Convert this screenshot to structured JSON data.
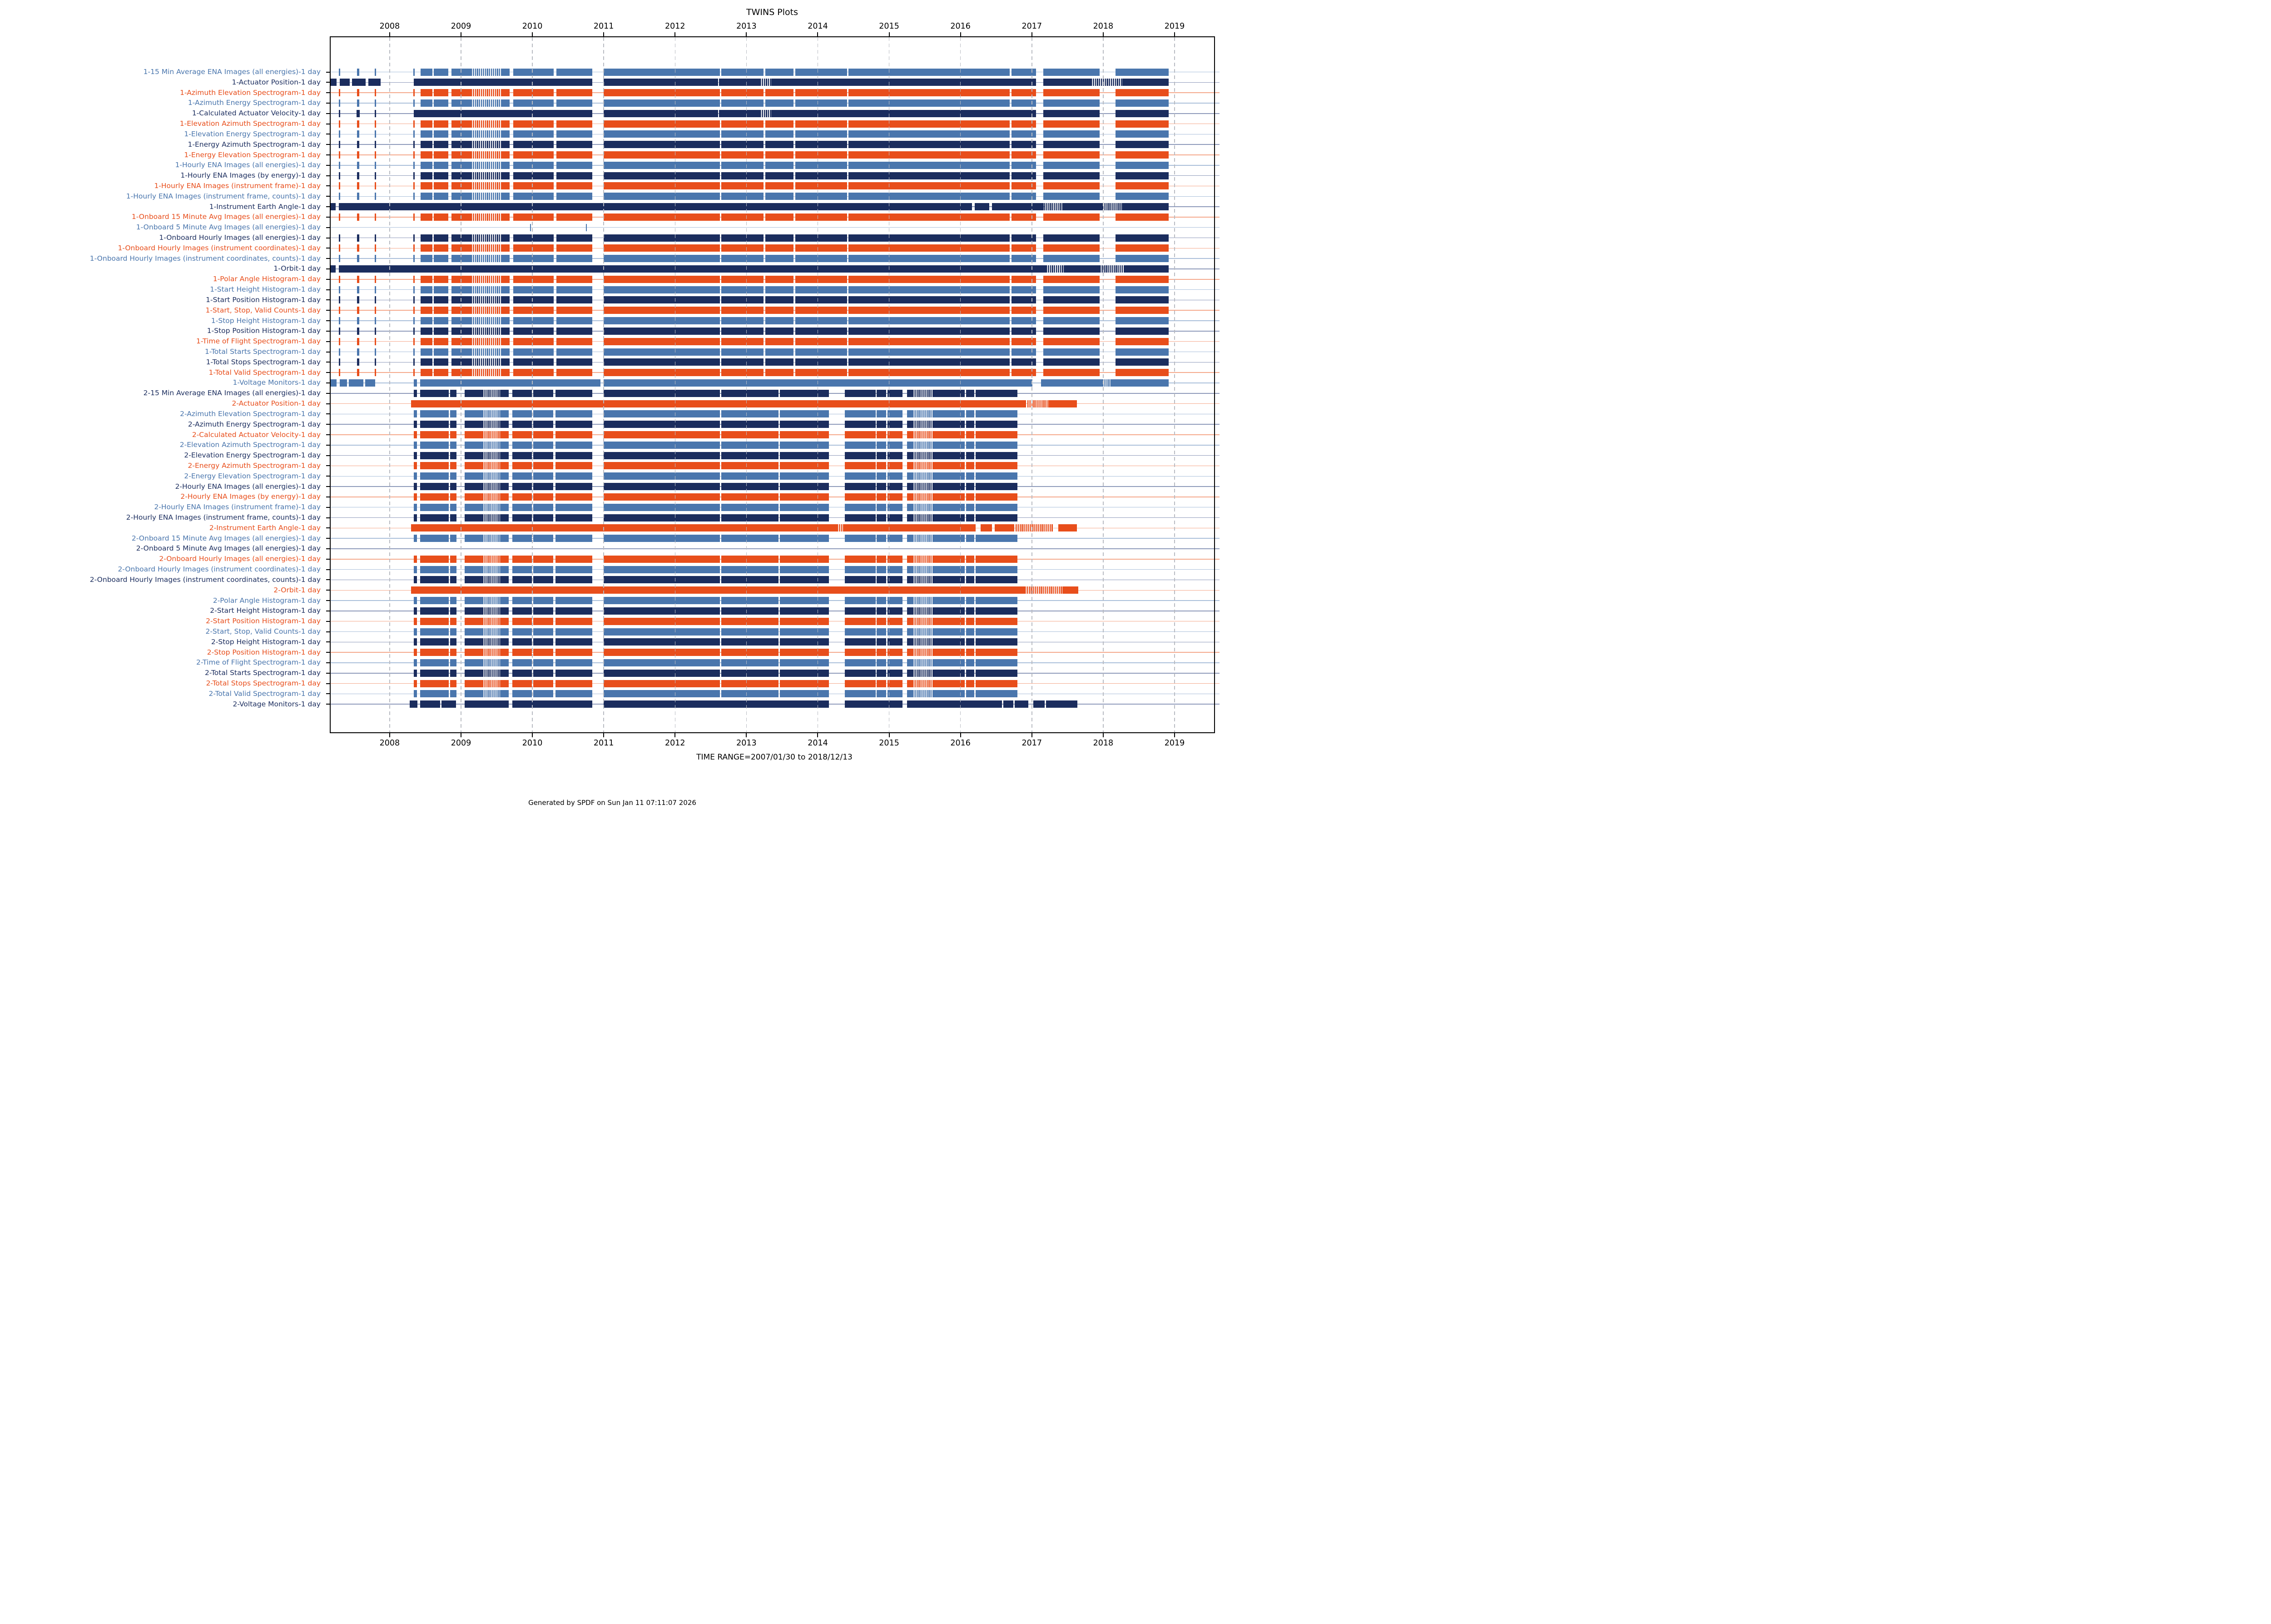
{
  "title": "TWINS Plots",
  "axis": {
    "years": [
      2008,
      2009,
      2010,
      2011,
      2012,
      2013,
      2014,
      2015,
      2016,
      2017,
      2018,
      2019
    ],
    "domain_start_year": 2007.17,
    "domain_end_year": 2019.55,
    "time_range_label": "TIME RANGE=2007/01/30 to 2018/12/13"
  },
  "footer": {
    "generated": "Generated by SPDF on Sun Jan 11 07:11:07 2026"
  },
  "colors": {
    "blue": "#4a76ad",
    "navy": "#1b2d5e",
    "orange": "#e84e1b",
    "blue_light": "#aabfda",
    "navy_light": "#8e9aba",
    "orange_light": "#f5a98c",
    "grid": "#b8bbc2",
    "frame": "#000000"
  },
  "chart_data": {
    "type": "gantt-availability",
    "x_unit": "decimal_year",
    "patterns": {
      "p1": {
        "solid": [
          [
            2007.29,
            2007.306
          ],
          [
            2007.54,
            2007.576
          ],
          [
            2007.79,
            2007.808
          ],
          [
            2008.33,
            2008.35
          ],
          [
            2008.435,
            2008.6
          ],
          [
            2008.615,
            2008.82
          ],
          [
            2008.868,
            2009.14
          ],
          [
            2009.56,
            2009.68
          ],
          [
            2009.735,
            2010.3
          ],
          [
            2010.335,
            2010.84
          ],
          [
            2011.0,
            2012.63
          ],
          [
            2012.648,
            2013.24
          ],
          [
            2013.262,
            2013.66
          ],
          [
            2013.682,
            2014.41
          ],
          [
            2014.432,
            2016.69
          ],
          [
            2016.712,
            2017.06
          ],
          [
            2017.16,
            2017.95
          ],
          [
            2018.17,
            2018.92
          ]
        ],
        "striped": [
          [
            2009.14,
            2009.56
          ]
        ]
      },
      "p1c": {
        "solid": [
          [
            2007.29,
            2007.306
          ],
          [
            2007.535,
            2007.58
          ],
          [
            2007.79,
            2007.808
          ],
          [
            2008.335,
            2010.84
          ],
          [
            2011.0,
            2012.6
          ],
          [
            2012.615,
            2013.19
          ],
          [
            2013.35,
            2017.06
          ],
          [
            2017.16,
            2017.95
          ],
          [
            2018.17,
            2018.92
          ]
        ],
        "striped": [
          [
            2013.19,
            2013.35
          ]
        ]
      },
      "act1": {
        "solid": [
          [
            2007.17,
            2007.255
          ],
          [
            2007.3,
            2007.44
          ],
          [
            2007.47,
            2007.665
          ],
          [
            2007.7,
            2007.875
          ],
          [
            2008.335,
            2010.84
          ],
          [
            2011.0,
            2012.6
          ],
          [
            2012.615,
            2013.19
          ],
          [
            2013.35,
            2017.06
          ],
          [
            2017.16,
            2017.83
          ],
          [
            2018.27,
            2018.92
          ]
        ],
        "striped": [
          [
            2013.19,
            2013.35
          ],
          [
            2017.83,
            2018.27
          ]
        ]
      },
      "ea1": {
        "solid": [
          [
            2007.17,
            2007.245
          ],
          [
            2007.285,
            2016.16
          ],
          [
            2016.2,
            2016.4
          ],
          [
            2016.44,
            2017.17
          ],
          [
            2017.44,
            2017.99
          ],
          [
            2018.26,
            2018.92
          ]
        ],
        "striped": [
          [
            2017.17,
            2017.44
          ],
          [
            2017.99,
            2018.26
          ]
        ]
      },
      "orbit1": {
        "solid": [
          [
            2007.17,
            2007.245
          ],
          [
            2007.285,
            2017.2
          ],
          [
            2017.45,
            2017.95
          ],
          [
            2018.3,
            2018.92
          ]
        ],
        "striped": [
          [
            2017.2,
            2017.45
          ],
          [
            2017.95,
            2018.3
          ]
        ]
      },
      "empty1": {
        "solid": [
          [
            2009.968,
            2009.982
          ],
          [
            2010.752,
            2010.766
          ]
        ],
        "striped": []
      },
      "volt1": {
        "solid": [
          [
            2007.17,
            2007.255
          ],
          [
            2007.3,
            2007.4
          ],
          [
            2007.43,
            2007.63
          ],
          [
            2007.66,
            2007.8
          ],
          [
            2008.335,
            2008.38
          ],
          [
            2008.43,
            2010.955
          ],
          [
            2011.0,
            2017.01
          ],
          [
            2017.13,
            2017.99
          ],
          [
            2018.11,
            2018.92
          ]
        ],
        "striped": [
          [
            2017.99,
            2018.11
          ]
        ]
      },
      "p2": {
        "solid": [
          [
            2008.335,
            2008.385
          ],
          [
            2008.43,
            2008.83
          ],
          [
            2008.845,
            2008.935
          ],
          [
            2009.05,
            2009.3
          ],
          [
            2009.55,
            2009.67
          ],
          [
            2009.72,
            2009.99
          ],
          [
            2010.01,
            2010.29
          ],
          [
            2010.325,
            2010.84
          ],
          [
            2011.0,
            2012.63
          ],
          [
            2012.648,
            2013.45
          ],
          [
            2013.47,
            2014.155
          ],
          [
            2014.38,
            2014.81
          ],
          [
            2014.825,
            2014.96
          ],
          [
            2014.975,
            2015.19
          ],
          [
            2015.25,
            2015.33
          ],
          [
            2015.62,
            2016.06
          ],
          [
            2016.08,
            2016.19
          ],
          [
            2016.21,
            2016.8
          ]
        ],
        "striped": [
          [
            2009.3,
            2009.55
          ],
          [
            2015.33,
            2015.62
          ]
        ]
      },
      "act2": {
        "solid": [
          [
            2008.3,
            2016.92
          ],
          [
            2017.24,
            2017.63
          ]
        ],
        "striped": [
          [
            2016.935,
            2017.24
          ]
        ]
      },
      "ea2": {
        "solid": [
          [
            2008.3,
            2014.27
          ],
          [
            2014.37,
            2016.21
          ],
          [
            2016.28,
            2016.44
          ],
          [
            2016.48,
            2016.75
          ],
          [
            2017.37,
            2017.63
          ]
        ],
        "striped": [
          [
            2014.27,
            2014.37
          ],
          [
            2016.77,
            2017.3
          ]
        ]
      },
      "orbit2": {
        "solid": [
          [
            2008.3,
            2016.9
          ],
          [
            2017.43,
            2017.65
          ]
        ],
        "striped": [
          [
            2016.9,
            2017.43
          ]
        ]
      },
      "empty2": {
        "solid": [],
        "striped": []
      },
      "volt2": {
        "solid": [
          [
            2008.28,
            2008.39
          ],
          [
            2008.43,
            2008.71
          ],
          [
            2008.725,
            2008.93
          ],
          [
            2009.05,
            2009.67
          ],
          [
            2009.72,
            2010.84
          ],
          [
            2011.0,
            2014.155
          ],
          [
            2014.38,
            2015.19
          ],
          [
            2015.25,
            2016.58
          ],
          [
            2016.6,
            2016.74
          ],
          [
            2016.76,
            2016.95
          ],
          [
            2017.02,
            2017.18
          ],
          [
            2017.2,
            2017.64
          ]
        ],
        "striped": []
      }
    },
    "rows": [
      {
        "label": "1-15 Min Average ENA Images (all energies)-1 day",
        "color": "blue",
        "pattern": "p1"
      },
      {
        "label": "1-Actuator Position-1 day",
        "color": "navy",
        "pattern": "act1"
      },
      {
        "label": "1-Azimuth Elevation Spectrogram-1 day",
        "color": "orange",
        "pattern": "p1"
      },
      {
        "label": "1-Azimuth Energy Spectrogram-1 day",
        "color": "blue",
        "pattern": "p1"
      },
      {
        "label": "1-Calculated Actuator Velocity-1 day",
        "color": "navy",
        "pattern": "p1c"
      },
      {
        "label": "1-Elevation Azimuth Spectrogram-1 day",
        "color": "orange",
        "pattern": "p1"
      },
      {
        "label": "1-Elevation Energy Spectrogram-1 day",
        "color": "blue",
        "pattern": "p1"
      },
      {
        "label": "1-Energy Azimuth Spectrogram-1 day",
        "color": "navy",
        "pattern": "p1"
      },
      {
        "label": "1-Energy Elevation Spectrogram-1 day",
        "color": "orange",
        "pattern": "p1"
      },
      {
        "label": "1-Hourly ENA Images (all energies)-1 day",
        "color": "blue",
        "pattern": "p1"
      },
      {
        "label": "1-Hourly ENA Images (by energy)-1 day",
        "color": "navy",
        "pattern": "p1"
      },
      {
        "label": "1-Hourly ENA Images (instrument frame)-1 day",
        "color": "orange",
        "pattern": "p1"
      },
      {
        "label": "1-Hourly ENA Images (instrument frame, counts)-1 day",
        "color": "blue",
        "pattern": "p1"
      },
      {
        "label": "1-Instrument Earth Angle-1 day",
        "color": "navy",
        "pattern": "ea1"
      },
      {
        "label": "1-Onboard 15 Minute Avg Images (all energies)-1 day",
        "color": "orange",
        "pattern": "p1"
      },
      {
        "label": "1-Onboard 5 Minute Avg Images (all energies)-1 day",
        "color": "blue",
        "pattern": "empty1"
      },
      {
        "label": "1-Onboard Hourly Images (all energies)-1 day",
        "color": "navy",
        "pattern": "p1"
      },
      {
        "label": "1-Onboard Hourly Images (instrument coordinates)-1 day",
        "color": "orange",
        "pattern": "p1"
      },
      {
        "label": "1-Onboard Hourly Images (instrument coordinates, counts)-1 day",
        "color": "blue",
        "pattern": "p1"
      },
      {
        "label": "1-Orbit-1 day",
        "color": "navy",
        "pattern": "orbit1"
      },
      {
        "label": "1-Polar Angle Histogram-1 day",
        "color": "orange",
        "pattern": "p1"
      },
      {
        "label": "1-Start Height Histogram-1 day",
        "color": "blue",
        "pattern": "p1"
      },
      {
        "label": "1-Start Position Histogram-1 day",
        "color": "navy",
        "pattern": "p1"
      },
      {
        "label": "1-Start, Stop, Valid Counts-1 day",
        "color": "orange",
        "pattern": "p1"
      },
      {
        "label": "1-Stop Height Histogram-1 day",
        "color": "blue",
        "pattern": "p1"
      },
      {
        "label": "1-Stop Position Histogram-1 day",
        "color": "navy",
        "pattern": "p1"
      },
      {
        "label": "1-Time of Flight Spectrogram-1 day",
        "color": "orange",
        "pattern": "p1"
      },
      {
        "label": "1-Total Starts Spectrogram-1 day",
        "color": "blue",
        "pattern": "p1"
      },
      {
        "label": "1-Total Stops Spectrogram-1 day",
        "color": "navy",
        "pattern": "p1"
      },
      {
        "label": "1-Total Valid Spectrogram-1 day",
        "color": "orange",
        "pattern": "p1"
      },
      {
        "label": "1-Voltage Monitors-1 day",
        "color": "blue",
        "pattern": "volt1"
      },
      {
        "label": "2-15 Min Average ENA Images (all energies)-1 day",
        "color": "navy",
        "pattern": "p2"
      },
      {
        "label": "2-Actuator Position-1 day",
        "color": "orange",
        "pattern": "act2"
      },
      {
        "label": "2-Azimuth Elevation Spectrogram-1 day",
        "color": "blue",
        "pattern": "p2"
      },
      {
        "label": "2-Azimuth Energy Spectrogram-1 day",
        "color": "navy",
        "pattern": "p2"
      },
      {
        "label": "2-Calculated Actuator Velocity-1 day",
        "color": "orange",
        "pattern": "p2"
      },
      {
        "label": "2-Elevation Azimuth Spectrogram-1 day",
        "color": "blue",
        "pattern": "p2"
      },
      {
        "label": "2-Elevation Energy Spectrogram-1 day",
        "color": "navy",
        "pattern": "p2"
      },
      {
        "label": "2-Energy Azimuth Spectrogram-1 day",
        "color": "orange",
        "pattern": "p2"
      },
      {
        "label": "2-Energy Elevation Spectrogram-1 day",
        "color": "blue",
        "pattern": "p2"
      },
      {
        "label": "2-Hourly ENA Images (all energies)-1 day",
        "color": "navy",
        "pattern": "p2"
      },
      {
        "label": "2-Hourly ENA Images (by energy)-1 day",
        "color": "orange",
        "pattern": "p2"
      },
      {
        "label": "2-Hourly ENA Images (instrument frame)-1 day",
        "color": "blue",
        "pattern": "p2"
      },
      {
        "label": "2-Hourly ENA Images (instrument frame, counts)-1 day",
        "color": "navy",
        "pattern": "p2"
      },
      {
        "label": "2-Instrument Earth Angle-1 day",
        "color": "orange",
        "pattern": "ea2"
      },
      {
        "label": "2-Onboard 15 Minute Avg Images (all energies)-1 day",
        "color": "blue",
        "pattern": "p2"
      },
      {
        "label": "2-Onboard 5 Minute Avg Images (all energies)-1 day",
        "color": "navy",
        "pattern": "empty2"
      },
      {
        "label": "2-Onboard Hourly Images (all energies)-1 day",
        "color": "orange",
        "pattern": "p2"
      },
      {
        "label": "2-Onboard Hourly Images (instrument coordinates)-1 day",
        "color": "blue",
        "pattern": "p2"
      },
      {
        "label": "2-Onboard Hourly Images (instrument coordinates, counts)-1 day",
        "color": "navy",
        "pattern": "p2"
      },
      {
        "label": "2-Orbit-1 day",
        "color": "orange",
        "pattern": "orbit2"
      },
      {
        "label": "2-Polar Angle Histogram-1 day",
        "color": "blue",
        "pattern": "p2"
      },
      {
        "label": "2-Start Height Histogram-1 day",
        "color": "navy",
        "pattern": "p2"
      },
      {
        "label": "2-Start Position Histogram-1 day",
        "color": "orange",
        "pattern": "p2"
      },
      {
        "label": "2-Start, Stop, Valid Counts-1 day",
        "color": "blue",
        "pattern": "p2"
      },
      {
        "label": "2-Stop Height Histogram-1 day",
        "color": "navy",
        "pattern": "p2"
      },
      {
        "label": "2-Stop Position Histogram-1 day",
        "color": "orange",
        "pattern": "p2"
      },
      {
        "label": "2-Time of Flight Spectrogram-1 day",
        "color": "blue",
        "pattern": "p2"
      },
      {
        "label": "2-Total Starts Spectrogram-1 day",
        "color": "navy",
        "pattern": "p2"
      },
      {
        "label": "2-Total Stops Spectrogram-1 day",
        "color": "orange",
        "pattern": "p2"
      },
      {
        "label": "2-Total Valid Spectrogram-1 day",
        "color": "blue",
        "pattern": "p2"
      },
      {
        "label": "2-Voltage Monitors-1 day",
        "color": "navy",
        "pattern": "volt2"
      }
    ]
  }
}
